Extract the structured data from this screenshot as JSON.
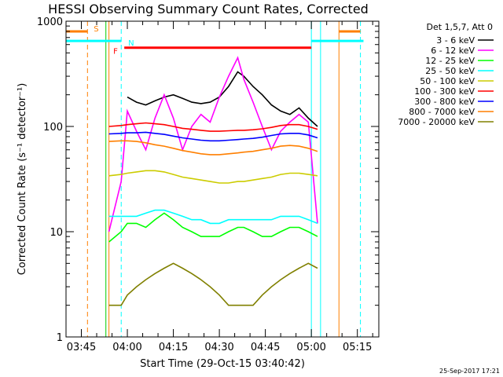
{
  "chart_data": {
    "type": "line",
    "title": "HESSI Observing Summary Count Rates, Corrected",
    "xlabel": "Start Time (29-Oct-15 03:40:42)",
    "ylabel": "Corrected Count Rate (s⁻¹ detector⁻¹)",
    "y_scale": "log",
    "ylim": [
      1,
      1000
    ],
    "xlim": [
      "03:40",
      "05:22"
    ],
    "y_ticks": [
      1,
      10,
      100,
      1000
    ],
    "x_ticks": [
      "03:45",
      "04:00",
      "04:15",
      "04:30",
      "04:45",
      "05:00",
      "05:15"
    ],
    "legend_title": "Det 1,5,7, Att 0",
    "legend_position": "right",
    "timestamp": "25-Sep-2017 17:21",
    "flags": [
      {
        "label": "S",
        "color": "#ff7f00",
        "x": "03:48"
      },
      {
        "label": "N",
        "color": "#00ffff",
        "x": "03:59"
      },
      {
        "label": "F",
        "color": "#ff0000",
        "x": "03:59"
      }
    ],
    "intervals": [
      {
        "name": "S",
        "color": "#ff7f00",
        "ranges": [
          [
            "03:40",
            "03:47"
          ],
          [
            "05:09",
            "05:16"
          ]
        ],
        "level": 800
      },
      {
        "name": "N",
        "color": "#00ffff",
        "ranges": [
          [
            "03:40",
            "03:58"
          ],
          [
            "05:00",
            "05:17"
          ]
        ],
        "level": 650
      },
      {
        "name": "F",
        "color": "#ff0000",
        "ranges": [
          [
            "03:59",
            "05:00"
          ]
        ],
        "level": 560
      }
    ],
    "vertical_lines": [
      {
        "x": "03:47",
        "color": "#ff7f00",
        "dash": true
      },
      {
        "x": "03:53",
        "color": "#00cc00",
        "dash": false
      },
      {
        "x": "03:54",
        "color": "#ff7f00",
        "dash": false
      },
      {
        "x": "03:58",
        "color": "#00ffff",
        "dash": true
      },
      {
        "x": "05:00",
        "color": "#00ffff",
        "dash": false
      },
      {
        "x": "05:03",
        "color": "#00ffff",
        "dash": false
      },
      {
        "x": "05:09",
        "color": "#ff7f00",
        "dash": false
      },
      {
        "x": "05:16",
        "color": "#00ffff",
        "dash": true
      }
    ],
    "x_times": [
      "03:54",
      "03:58",
      "04:00",
      "04:03",
      "04:06",
      "04:09",
      "04:12",
      "04:15",
      "04:18",
      "04:21",
      "04:24",
      "04:27",
      "04:30",
      "04:33",
      "04:36",
      "04:38",
      "04:41",
      "04:44",
      "04:47",
      "04:50",
      "04:53",
      "04:56",
      "04:59",
      "05:02"
    ],
    "series": [
      {
        "name": "3 - 6 keV",
        "color": "#000000",
        "values": [
          null,
          null,
          190,
          170,
          160,
          175,
          190,
          200,
          185,
          170,
          165,
          170,
          190,
          240,
          330,
          300,
          240,
          200,
          160,
          140,
          130,
          150,
          120,
          100
        ]
      },
      {
        "name": "6 - 12 keV",
        "color": "#ff00ff",
        "values": [
          10,
          30,
          140,
          90,
          60,
          120,
          200,
          120,
          60,
          100,
          130,
          110,
          190,
          300,
          450,
          280,
          170,
          100,
          60,
          90,
          110,
          130,
          110,
          12
        ]
      },
      {
        "name": "12 - 25 keV",
        "color": "#00ff00",
        "values": [
          8,
          10,
          12,
          12,
          11,
          13,
          15,
          13,
          11,
          10,
          9,
          9,
          9,
          10,
          11,
          11,
          10,
          9,
          9,
          10,
          11,
          11,
          10,
          9
        ]
      },
      {
        "name": "25 - 50 keV",
        "color": "#00ffff",
        "values": [
          14,
          14,
          14,
          14,
          15,
          16,
          16,
          15,
          14,
          13,
          13,
          12,
          12,
          13,
          13,
          13,
          13,
          13,
          13,
          14,
          14,
          14,
          13,
          12
        ]
      },
      {
        "name": "50 - 100 keV",
        "color": "#cccc00",
        "values": [
          34,
          35,
          36,
          37,
          38,
          38,
          37,
          35,
          33,
          32,
          31,
          30,
          29,
          29,
          30,
          30,
          31,
          32,
          33,
          35,
          36,
          36,
          35,
          34
        ]
      },
      {
        "name": "100 - 300 keV",
        "color": "#ff0000",
        "values": [
          100,
          102,
          104,
          106,
          108,
          106,
          104,
          100,
          96,
          94,
          92,
          90,
          90,
          91,
          92,
          92,
          93,
          95,
          98,
          102,
          104,
          104,
          100,
          94
        ]
      },
      {
        "name": "300 - 800 keV",
        "color": "#0000ff",
        "values": [
          85,
          86,
          87,
          87,
          88,
          86,
          84,
          81,
          78,
          76,
          74,
          73,
          73,
          74,
          75,
          76,
          77,
          79,
          82,
          85,
          86,
          86,
          83,
          78
        ]
      },
      {
        "name": "800 - 7000 keV",
        "color": "#ff7f00",
        "values": [
          72,
          73,
          73,
          72,
          70,
          67,
          65,
          62,
          59,
          57,
          55,
          54,
          54,
          55,
          56,
          57,
          58,
          60,
          62,
          65,
          66,
          65,
          62,
          58
        ]
      },
      {
        "name": "7000 - 20000 keV",
        "color": "#808000",
        "values": [
          2,
          2,
          2.5,
          3,
          3.5,
          4,
          4.5,
          5,
          4.5,
          4,
          3.5,
          3,
          2.5,
          2,
          2,
          2,
          2,
          2.5,
          3,
          3.5,
          4,
          4.5,
          5,
          4.5
        ]
      }
    ]
  }
}
